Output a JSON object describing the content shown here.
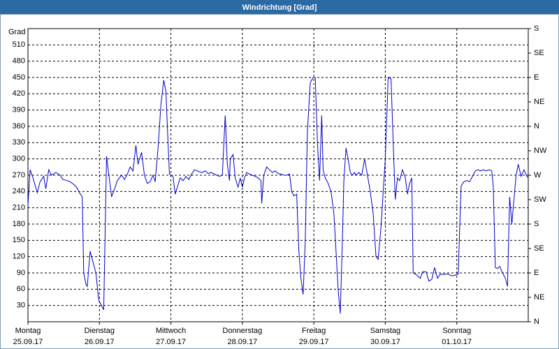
{
  "chart_data": {
    "type": "line",
    "title": "Windrichtung [Grad]",
    "y_label": "Grad",
    "xlim": [
      0,
      7
    ],
    "xticks": [
      {
        "value": 0,
        "label": "Montag",
        "date": "25.09.17"
      },
      {
        "value": 1,
        "label": "Dienstag",
        "date": "26.09.17"
      },
      {
        "value": 2,
        "label": "Mittwoch",
        "date": "27.09.17"
      },
      {
        "value": 3,
        "label": "Donnerstag",
        "date": "28.09.17"
      },
      {
        "value": 4,
        "label": "Freitag",
        "date": "29.09.17"
      },
      {
        "value": 5,
        "label": "Samstag",
        "date": "30.09.17"
      },
      {
        "value": 6,
        "label": "Sonntag",
        "date": "01.10.17"
      }
    ],
    "ylim": [
      0,
      540
    ],
    "yticks": [
      30,
      60,
      90,
      120,
      150,
      180,
      210,
      240,
      270,
      300,
      330,
      360,
      390,
      420,
      450,
      480,
      510
    ],
    "y2lim": [
      0,
      540
    ],
    "y2ticks": [
      {
        "value": 0,
        "label": "N"
      },
      {
        "value": 45,
        "label": "NE"
      },
      {
        "value": 90,
        "label": "E"
      },
      {
        "value": 135,
        "label": "SE"
      },
      {
        "value": 180,
        "label": "S"
      },
      {
        "value": 225,
        "label": "SW"
      },
      {
        "value": 270,
        "label": "W"
      },
      {
        "value": 315,
        "label": "NW"
      },
      {
        "value": 360,
        "label": "N"
      },
      {
        "value": 405,
        "label": "NE"
      },
      {
        "value": 450,
        "label": "E"
      },
      {
        "value": 495,
        "label": "SE"
      },
      {
        "value": 540,
        "label": "S"
      }
    ],
    "grid": true,
    "series": [
      {
        "color": "#0000cc",
        "x": [
          0,
          0.03,
          0.07,
          0.13,
          0.17,
          0.22,
          0.25,
          0.29,
          0.33,
          0.39,
          0.45,
          0.49,
          0.55,
          0.59,
          0.65,
          0.68,
          0.72,
          0.76,
          0.78,
          0.81,
          0.83,
          0.87,
          0.91,
          0.95,
          0.99,
          1.03,
          1.06,
          1.1,
          1.17,
          1.2,
          1.25,
          1.31,
          1.35,
          1.39,
          1.43,
          1.47,
          1.51,
          1.54,
          1.59,
          1.63,
          1.67,
          1.71,
          1.75,
          1.78,
          1.82,
          1.86,
          1.9,
          1.93,
          1.96,
          1.98,
          2.03,
          2.06,
          2.09,
          2.13,
          2.17,
          2.21,
          2.25,
          2.29,
          2.33,
          2.37,
          2.4,
          2.44,
          2.48,
          2.52,
          2.56,
          2.6,
          2.64,
          2.68,
          2.72,
          2.76,
          2.79,
          2.82,
          2.83,
          2.87,
          2.9,
          2.94,
          2.97,
          3.0,
          3.03,
          3.06,
          3.1,
          3.14,
          3.18,
          3.22,
          3.26,
          3.27,
          3.3,
          3.34,
          3.38,
          3.42,
          3.46,
          3.5,
          3.54,
          3.58,
          3.62,
          3.66,
          3.69,
          3.72,
          3.76,
          3.79,
          3.82,
          3.85,
          3.88,
          3.91,
          3.95,
          3.99,
          4.02,
          4.05,
          4.08,
          4.11,
          4.13,
          4.16,
          4.2,
          4.24,
          4.28,
          4.31,
          4.34,
          4.37,
          4.4,
          4.42,
          4.45,
          4.48,
          4.51,
          4.54,
          4.57,
          4.59,
          4.63,
          4.67,
          4.71,
          4.75,
          4.79,
          4.83,
          4.87,
          4.9,
          4.94,
          4.97,
          5.0,
          5.04,
          5.08,
          5.11,
          5.14,
          5.17,
          5.2,
          5.24,
          5.28,
          5.31,
          5.34,
          5.37,
          5.39,
          5.42,
          5.45,
          5.49,
          5.52,
          5.57,
          5.61,
          5.65,
          5.69,
          5.73,
          5.77,
          5.81,
          5.85,
          5.88,
          5.92,
          5.96,
          6.02,
          6.04,
          6.06,
          6.1,
          6.14,
          6.18,
          6.22,
          6.26,
          6.3,
          6.33,
          6.37,
          6.41,
          6.45,
          6.49,
          6.51,
          6.54,
          6.57,
          6.6,
          6.64,
          6.68,
          6.71,
          6.74,
          6.77,
          6.8,
          6.83,
          6.86,
          6.9,
          6.94,
          6.98,
          7.0
        ],
        "values": [
          215,
          280,
          265,
          238,
          258,
          268,
          245,
          280,
          270,
          275,
          270,
          262,
          260,
          258,
          252,
          248,
          238,
          230,
          90,
          70,
          65,
          130,
          110,
          90,
          40,
          30,
          22,
          305,
          230,
          240,
          260,
          270,
          262,
          272,
          285,
          278,
          325,
          290,
          312,
          270,
          255,
          258,
          270,
          258,
          320,
          400,
          445,
          425,
          330,
          272,
          268,
          235,
          248,
          265,
          260,
          268,
          262,
          272,
          280,
          278,
          276,
          275,
          278,
          273,
          275,
          273,
          270,
          268,
          270,
          380,
          290,
          260,
          300,
          308,
          265,
          248,
          265,
          248,
          265,
          275,
          272,
          270,
          268,
          265,
          260,
          218,
          270,
          285,
          280,
          275,
          278,
          273,
          272,
          270,
          270,
          272,
          240,
          232,
          235,
          130,
          80,
          50,
          150,
          350,
          440,
          450,
          450,
          330,
          260,
          380,
          280,
          265,
          255,
          240,
          200,
          130,
          60,
          15,
          155,
          260,
          320,
          300,
          275,
          270,
          275,
          270,
          275,
          270,
          300,
          270,
          240,
          200,
          120,
          115,
          175,
          240,
          300,
          450,
          448,
          330,
          225,
          265,
          260,
          280,
          265,
          235,
          255,
          265,
          90,
          88,
          85,
          80,
          92,
          92,
          75,
          78,
          100,
          80,
          88,
          87,
          88,
          88,
          85,
          85,
          88,
          170,
          250,
          258,
          260,
          258,
          268,
          278,
          280,
          278,
          280,
          278,
          280,
          278,
          250,
          100,
          98,
          102,
          90,
          80,
          65,
          230,
          180,
          225,
          270,
          290,
          268,
          280,
          268,
          265
        ]
      }
    ]
  }
}
